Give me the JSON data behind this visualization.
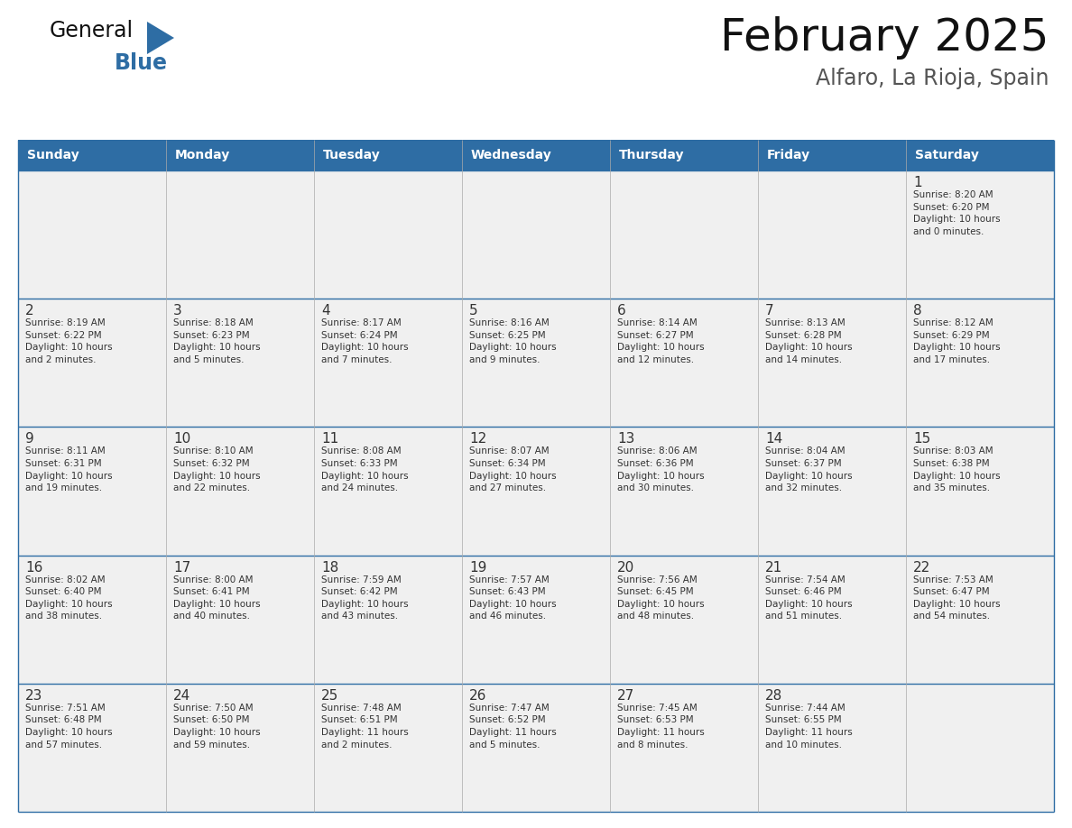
{
  "title": "February 2025",
  "subtitle": "Alfaro, La Rioja, Spain",
  "header_color": "#2E6DA4",
  "header_text_color": "#FFFFFF",
  "cell_bg": "#F0F0F0",
  "border_color": "#2E6DA4",
  "text_color": "#333333",
  "days_of_week": [
    "Sunday",
    "Monday",
    "Tuesday",
    "Wednesday",
    "Thursday",
    "Friday",
    "Saturday"
  ],
  "weeks": [
    [
      {
        "day": null,
        "info": null
      },
      {
        "day": null,
        "info": null
      },
      {
        "day": null,
        "info": null
      },
      {
        "day": null,
        "info": null
      },
      {
        "day": null,
        "info": null
      },
      {
        "day": null,
        "info": null
      },
      {
        "day": 1,
        "info": "Sunrise: 8:20 AM\nSunset: 6:20 PM\nDaylight: 10 hours\nand 0 minutes."
      }
    ],
    [
      {
        "day": 2,
        "info": "Sunrise: 8:19 AM\nSunset: 6:22 PM\nDaylight: 10 hours\nand 2 minutes."
      },
      {
        "day": 3,
        "info": "Sunrise: 8:18 AM\nSunset: 6:23 PM\nDaylight: 10 hours\nand 5 minutes."
      },
      {
        "day": 4,
        "info": "Sunrise: 8:17 AM\nSunset: 6:24 PM\nDaylight: 10 hours\nand 7 minutes."
      },
      {
        "day": 5,
        "info": "Sunrise: 8:16 AM\nSunset: 6:25 PM\nDaylight: 10 hours\nand 9 minutes."
      },
      {
        "day": 6,
        "info": "Sunrise: 8:14 AM\nSunset: 6:27 PM\nDaylight: 10 hours\nand 12 minutes."
      },
      {
        "day": 7,
        "info": "Sunrise: 8:13 AM\nSunset: 6:28 PM\nDaylight: 10 hours\nand 14 minutes."
      },
      {
        "day": 8,
        "info": "Sunrise: 8:12 AM\nSunset: 6:29 PM\nDaylight: 10 hours\nand 17 minutes."
      }
    ],
    [
      {
        "day": 9,
        "info": "Sunrise: 8:11 AM\nSunset: 6:31 PM\nDaylight: 10 hours\nand 19 minutes."
      },
      {
        "day": 10,
        "info": "Sunrise: 8:10 AM\nSunset: 6:32 PM\nDaylight: 10 hours\nand 22 minutes."
      },
      {
        "day": 11,
        "info": "Sunrise: 8:08 AM\nSunset: 6:33 PM\nDaylight: 10 hours\nand 24 minutes."
      },
      {
        "day": 12,
        "info": "Sunrise: 8:07 AM\nSunset: 6:34 PM\nDaylight: 10 hours\nand 27 minutes."
      },
      {
        "day": 13,
        "info": "Sunrise: 8:06 AM\nSunset: 6:36 PM\nDaylight: 10 hours\nand 30 minutes."
      },
      {
        "day": 14,
        "info": "Sunrise: 8:04 AM\nSunset: 6:37 PM\nDaylight: 10 hours\nand 32 minutes."
      },
      {
        "day": 15,
        "info": "Sunrise: 8:03 AM\nSunset: 6:38 PM\nDaylight: 10 hours\nand 35 minutes."
      }
    ],
    [
      {
        "day": 16,
        "info": "Sunrise: 8:02 AM\nSunset: 6:40 PM\nDaylight: 10 hours\nand 38 minutes."
      },
      {
        "day": 17,
        "info": "Sunrise: 8:00 AM\nSunset: 6:41 PM\nDaylight: 10 hours\nand 40 minutes."
      },
      {
        "day": 18,
        "info": "Sunrise: 7:59 AM\nSunset: 6:42 PM\nDaylight: 10 hours\nand 43 minutes."
      },
      {
        "day": 19,
        "info": "Sunrise: 7:57 AM\nSunset: 6:43 PM\nDaylight: 10 hours\nand 46 minutes."
      },
      {
        "day": 20,
        "info": "Sunrise: 7:56 AM\nSunset: 6:45 PM\nDaylight: 10 hours\nand 48 minutes."
      },
      {
        "day": 21,
        "info": "Sunrise: 7:54 AM\nSunset: 6:46 PM\nDaylight: 10 hours\nand 51 minutes."
      },
      {
        "day": 22,
        "info": "Sunrise: 7:53 AM\nSunset: 6:47 PM\nDaylight: 10 hours\nand 54 minutes."
      }
    ],
    [
      {
        "day": 23,
        "info": "Sunrise: 7:51 AM\nSunset: 6:48 PM\nDaylight: 10 hours\nand 57 minutes."
      },
      {
        "day": 24,
        "info": "Sunrise: 7:50 AM\nSunset: 6:50 PM\nDaylight: 10 hours\nand 59 minutes."
      },
      {
        "day": 25,
        "info": "Sunrise: 7:48 AM\nSunset: 6:51 PM\nDaylight: 11 hours\nand 2 minutes."
      },
      {
        "day": 26,
        "info": "Sunrise: 7:47 AM\nSunset: 6:52 PM\nDaylight: 11 hours\nand 5 minutes."
      },
      {
        "day": 27,
        "info": "Sunrise: 7:45 AM\nSunset: 6:53 PM\nDaylight: 11 hours\nand 8 minutes."
      },
      {
        "day": 28,
        "info": "Sunrise: 7:44 AM\nSunset: 6:55 PM\nDaylight: 11 hours\nand 10 minutes."
      },
      {
        "day": null,
        "info": null
      }
    ]
  ],
  "logo_text_general": "General",
  "logo_text_blue": "Blue",
  "logo_color_general": "#111111",
  "logo_color_blue": "#2E6DA4",
  "title_color": "#111111",
  "subtitle_color": "#555555"
}
